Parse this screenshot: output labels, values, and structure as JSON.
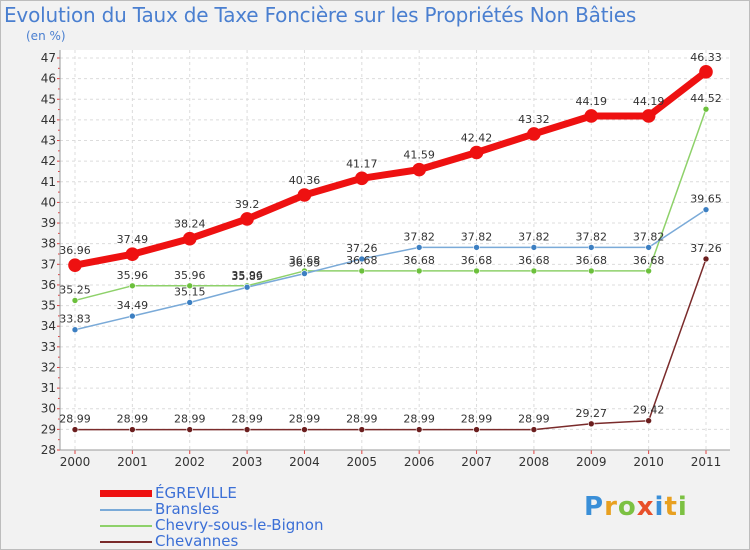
{
  "title": "Evolution du Taux de Taxe Foncière sur les Propriétés Non Bâties",
  "subtitle": "(en %)",
  "logo": {
    "letters": [
      "P",
      "r",
      "o",
      "x",
      "i",
      "t",
      "i"
    ],
    "colors": [
      "#3a8fd8",
      "#e8a020",
      "#7cc142",
      "#e8502a",
      "#3a8fd8",
      "#e8a020",
      "#7cc142"
    ]
  },
  "chart_data": {
    "type": "line",
    "categories": [
      "2000",
      "2001",
      "2002",
      "2003",
      "2004",
      "2005",
      "2006",
      "2007",
      "2008",
      "2009",
      "2010",
      "2011"
    ],
    "ylim": [
      28,
      47
    ],
    "yticks": [
      28,
      29,
      30,
      31,
      32,
      33,
      34,
      35,
      36,
      37,
      38,
      39,
      40,
      41,
      42,
      43,
      44,
      45,
      46,
      47
    ],
    "grid": true,
    "legend_position": "bottom-left",
    "series": [
      {
        "name": "Chevannes",
        "color": "#7a2b2b",
        "dot": "#6b1e1e",
        "width": 1.5,
        "r": 3,
        "values": [
          28.99,
          28.99,
          28.99,
          28.99,
          28.99,
          28.99,
          28.99,
          28.99,
          28.99,
          29.27,
          29.42,
          37.26
        ],
        "labels": [
          "28.99",
          "28.99",
          "28.99",
          "28.99",
          "28.99",
          "28.99",
          "28.99",
          "28.99",
          "28.99",
          "29.27",
          "29.42",
          "37.26"
        ]
      },
      {
        "name": "Chevry-sous-le-Bignon",
        "color": "#8ed16a",
        "dot": "#6cc03c",
        "width": 1.5,
        "r": 3,
        "values": [
          35.25,
          35.96,
          35.96,
          35.96,
          36.68,
          36.68,
          36.68,
          36.68,
          36.68,
          36.68,
          36.68,
          44.52
        ],
        "labels": [
          "35.25",
          "35.96",
          "35.96",
          "35.96",
          "36.68",
          "36.68",
          "36.68",
          "36.68",
          "36.68",
          "36.68",
          "36.68",
          "44.52"
        ]
      },
      {
        "name": "Bransles",
        "color": "#7aaad8",
        "dot": "#3c7fc2",
        "width": 1.5,
        "r": 3,
        "values": [
          33.83,
          34.49,
          35.15,
          35.89,
          36.55,
          37.26,
          37.82,
          37.82,
          37.82,
          37.82,
          37.82,
          39.65
        ],
        "labels": [
          "33.83",
          "34.49",
          "35.15",
          "35.89",
          "36.55",
          "37.26",
          "37.82",
          "37.82",
          "37.82",
          "37.82",
          "37.82",
          "39.65"
        ]
      },
      {
        "name": "ÉGREVILLE",
        "color": "#ee1111",
        "dot": "#ee1111",
        "width": 7,
        "r": 6.5,
        "values": [
          36.96,
          37.49,
          38.24,
          39.2,
          40.36,
          41.17,
          41.59,
          42.42,
          43.32,
          44.19,
          44.19,
          46.33
        ],
        "labels": [
          "36.96",
          "37.49",
          "38.24",
          "39.2",
          "40.36",
          "41.17",
          "41.59",
          "42.42",
          "43.32",
          "44.19",
          "44.19",
          "46.33"
        ]
      }
    ],
    "legend_order": [
      "ÉGREVILLE",
      "Bransles",
      "Chevry-sous-le-Bignon",
      "Chevannes"
    ]
  }
}
